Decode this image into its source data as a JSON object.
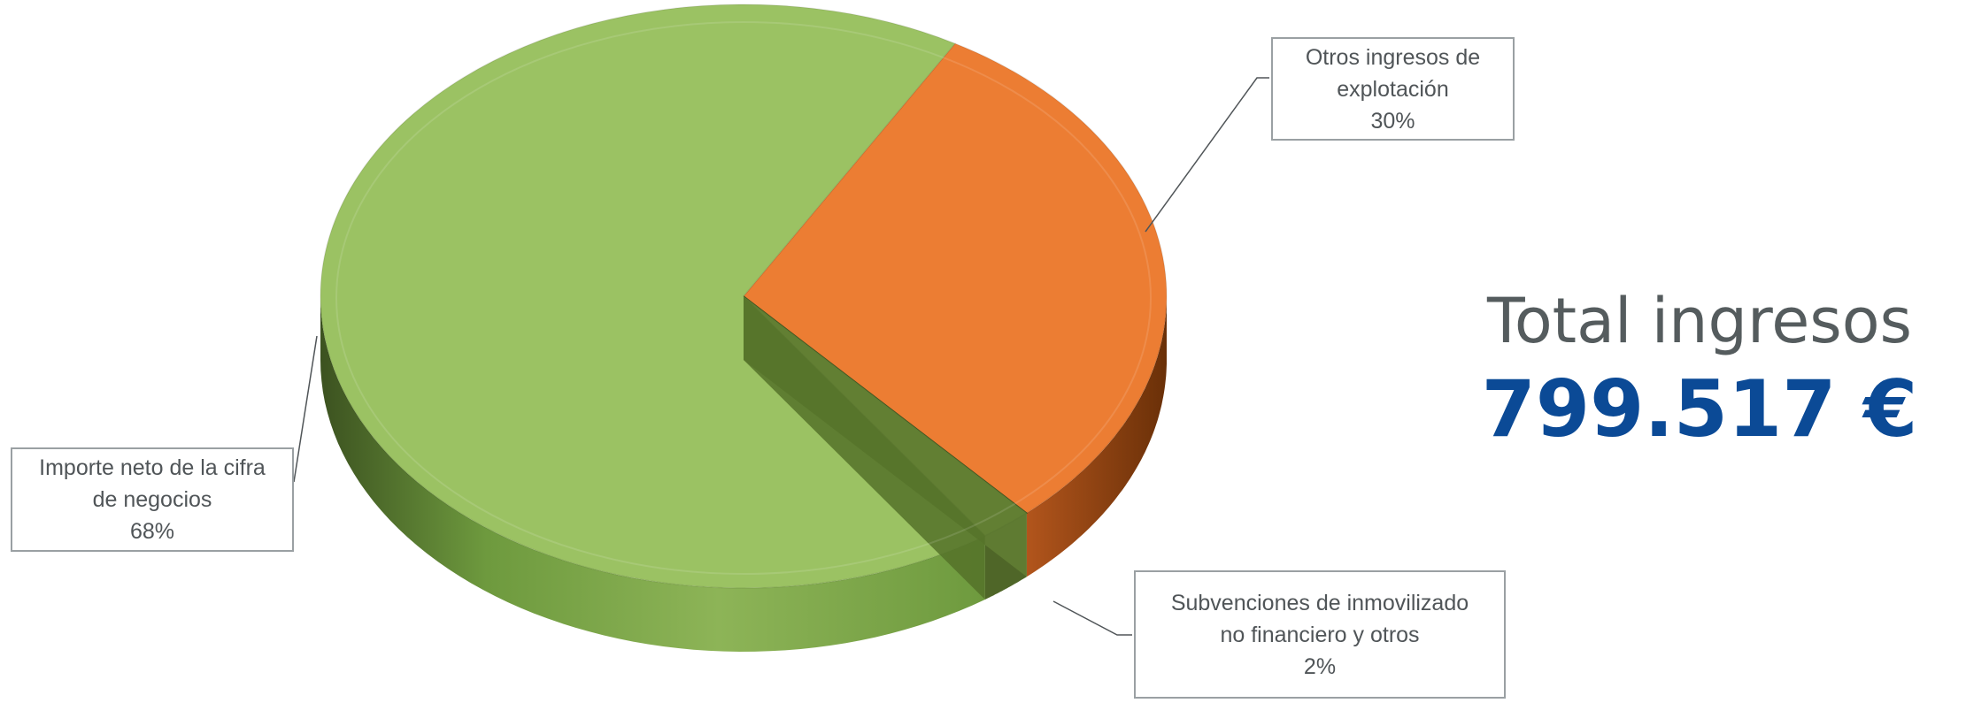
{
  "chart_data": {
    "type": "pie",
    "title": "",
    "categories": [
      "Importe neto de la cifra de negocios",
      "Otros ingresos de explotación",
      "Subvenciones de inmovilizado no financiero y otros"
    ],
    "values": [
      68,
      30,
      2
    ],
    "unit": "%",
    "colors": [
      "#9bc263",
      "#ec7d33",
      "#6e8a36"
    ],
    "labels": [
      {
        "line1": "Importe neto de la cifra",
        "line2": "de negocios",
        "pct": "68%"
      },
      {
        "line1": "Otros ingresos de",
        "line2": "explotación",
        "pct": "30%"
      },
      {
        "line1": "Subvenciones de inmovilizado",
        "line2": "no financiero y otros",
        "pct": "2%"
      }
    ],
    "style": "3d-pie"
  },
  "total": {
    "label": "Total ingresos",
    "value": "799.517 €"
  }
}
